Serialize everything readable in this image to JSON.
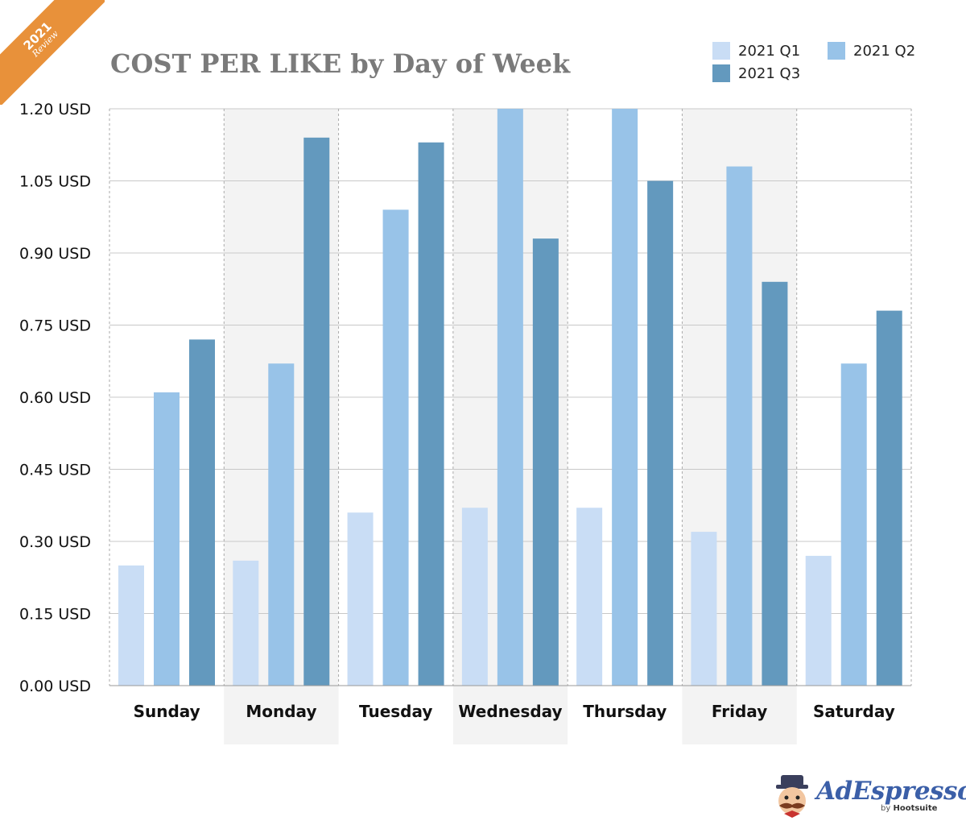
{
  "badge": {
    "year": "2021",
    "subtitle": "Review",
    "color": "#e8913a"
  },
  "logo": {
    "name": "AdEspresso",
    "by": "by",
    "company": "Hootsuite"
  },
  "chart_data": {
    "type": "bar",
    "title": "COST PER LIKE by Day of Week",
    "xlabel": "",
    "ylabel": "",
    "categories": [
      "Sunday",
      "Monday",
      "Tuesday",
      "Wednesday",
      "Thursday",
      "Friday",
      "Saturday"
    ],
    "series": [
      {
        "name": "2021 Q1",
        "color": "#c9ddf5",
        "values": [
          0.25,
          0.26,
          0.36,
          0.37,
          0.37,
          0.32,
          0.27
        ]
      },
      {
        "name": "2021 Q2",
        "color": "#98c3e8",
        "values": [
          0.61,
          0.67,
          0.99,
          1.2,
          1.2,
          1.08,
          0.67
        ]
      },
      {
        "name": "2021 Q3",
        "color": "#6399be",
        "values": [
          0.72,
          1.14,
          1.13,
          0.93,
          1.05,
          0.84,
          0.78
        ]
      }
    ],
    "ylim": [
      0,
      1.2
    ],
    "yticks": [
      0,
      0.15,
      0.3,
      0.45,
      0.6,
      0.75,
      0.9,
      1.05,
      1.2
    ],
    "ytick_labels": [
      "0.00 USD",
      "0.15 USD",
      "0.30 USD",
      "0.45 USD",
      "0.60 USD",
      "0.75 USD",
      "0.90 USD",
      "1.05 USD",
      "1.20 USD"
    ],
    "shaded_categories": [
      "Monday",
      "Wednesday",
      "Friday"
    ],
    "grid": true,
    "legend_position": "top-right"
  }
}
